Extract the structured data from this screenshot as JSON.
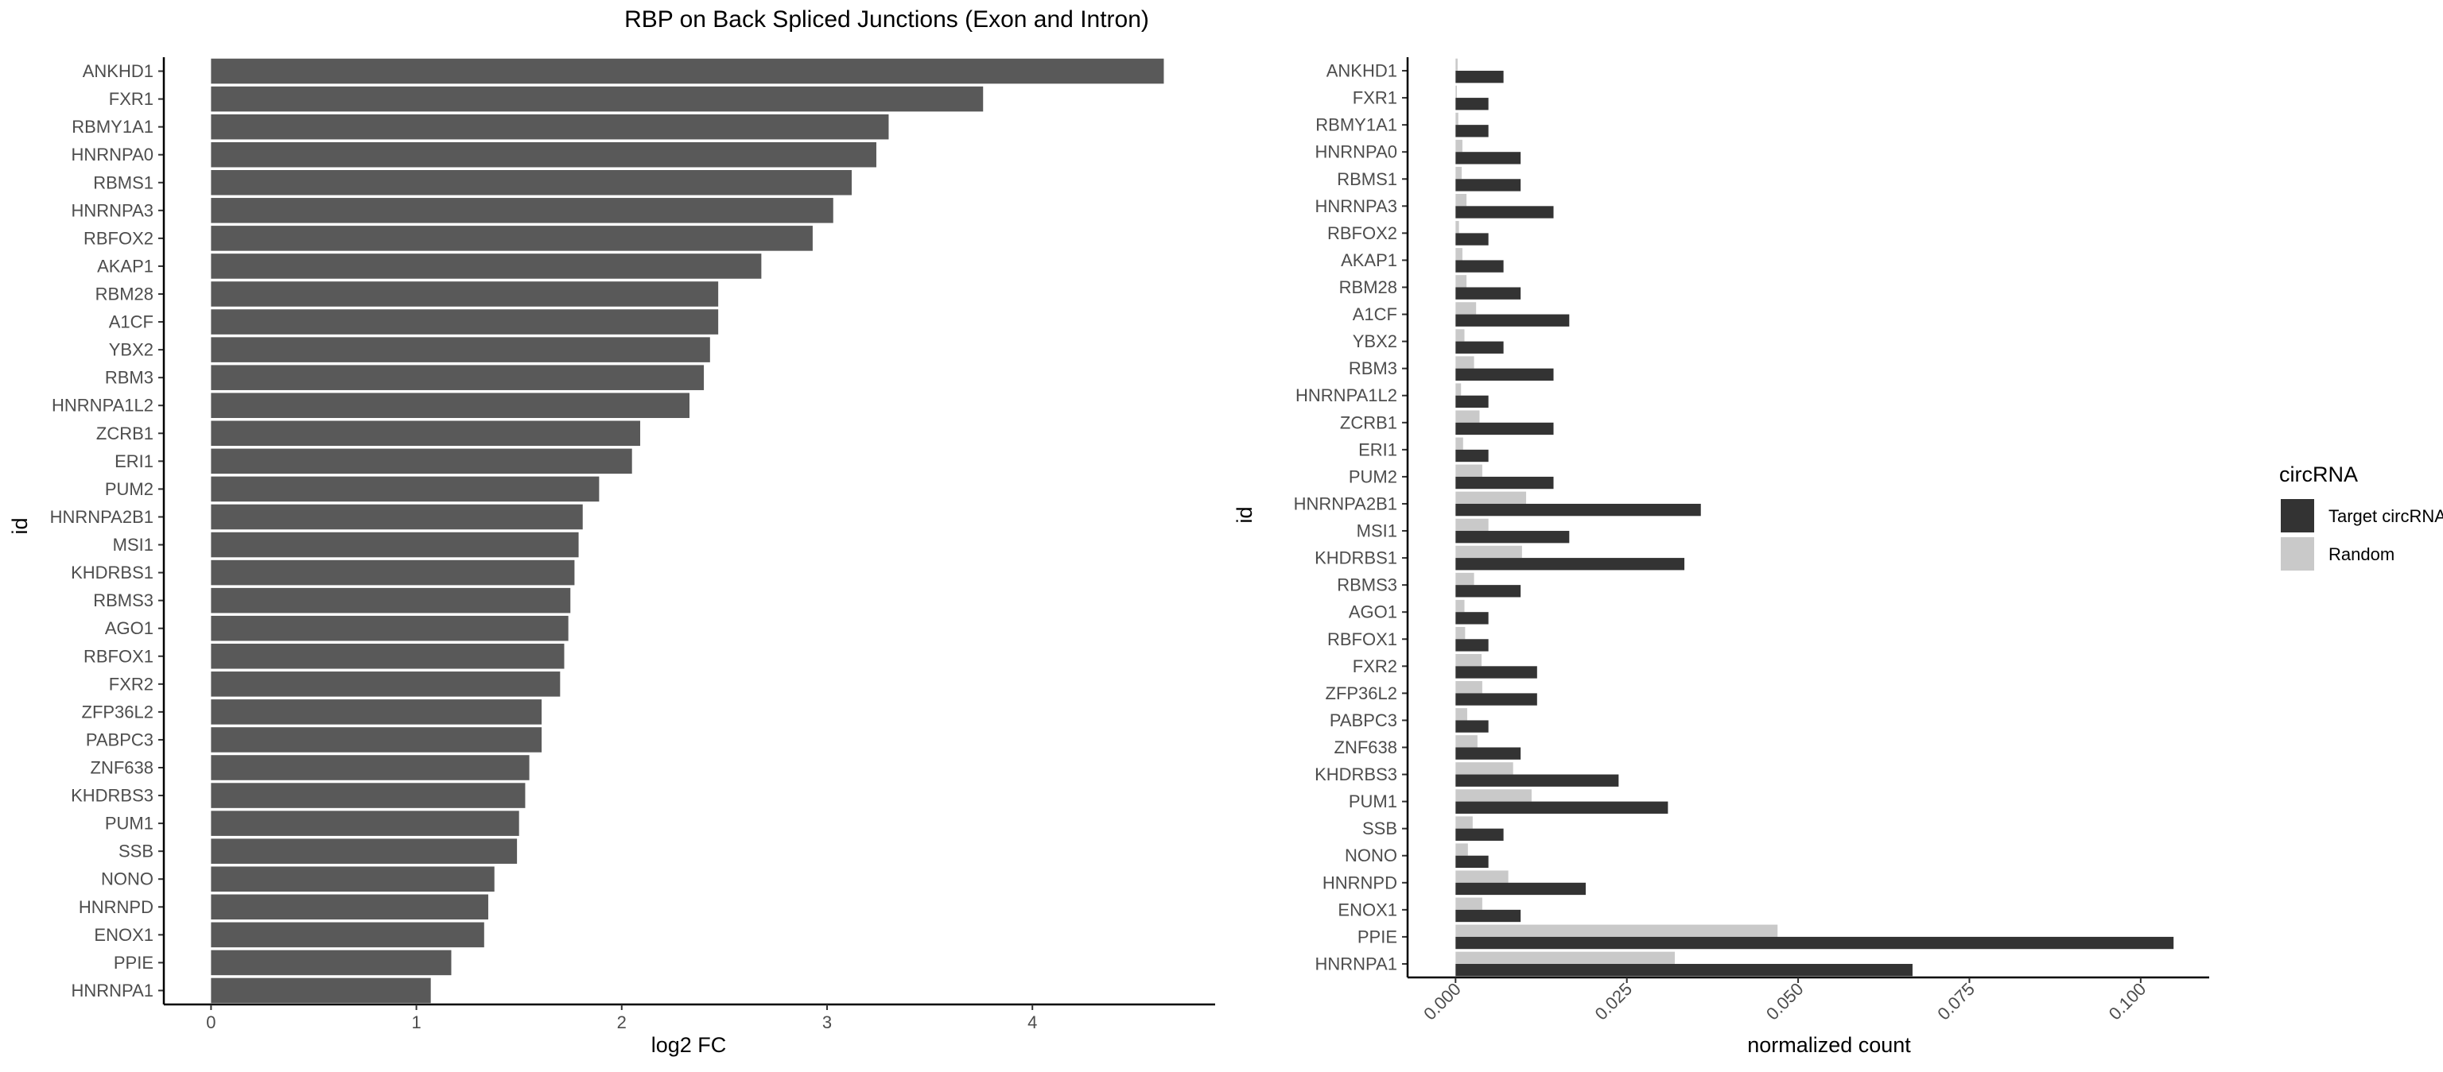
{
  "title": "RBP on Back Spliced Junctions (Exon and Intron)",
  "chart_data": [
    {
      "type": "bar",
      "orientation": "horizontal",
      "xlabel": "log2 FC",
      "ylabel": "id",
      "xlim": [
        -0.23,
        4.89
      ],
      "xticks": [
        0,
        1,
        2,
        3,
        4
      ],
      "bar_color": "#595959",
      "categories": [
        "ANKHD1",
        "FXR1",
        "RBMY1A1",
        "HNRNPA0",
        "RBMS1",
        "HNRNPA3",
        "RBFOX2",
        "AKAP1",
        "RBM28",
        "A1CF",
        "YBX2",
        "RBM3",
        "HNRNPA1L2",
        "ZCRB1",
        "ERI1",
        "PUM2",
        "HNRNPA2B1",
        "MSI1",
        "KHDRBS1",
        "RBMS3",
        "AGO1",
        "RBFOX1",
        "FXR2",
        "ZFP36L2",
        "PABPC3",
        "ZNF638",
        "KHDRBS3",
        "PUM1",
        "SSB",
        "NONO",
        "HNRNPD",
        "ENOX1",
        "PPIE",
        "HNRNPA1"
      ],
      "values": [
        4.64,
        3.76,
        3.3,
        3.24,
        3.12,
        3.03,
        2.93,
        2.68,
        2.47,
        2.47,
        2.43,
        2.4,
        2.33,
        2.09,
        2.05,
        1.89,
        1.81,
        1.79,
        1.77,
        1.75,
        1.74,
        1.72,
        1.7,
        1.61,
        1.61,
        1.55,
        1.53,
        1.5,
        1.49,
        1.38,
        1.35,
        1.33,
        1.17,
        1.07
      ]
    },
    {
      "type": "bar",
      "orientation": "horizontal",
      "grouped": true,
      "xlabel": "normalized count",
      "ylabel": "id",
      "xlim": [
        -0.007,
        0.11
      ],
      "xticks": [
        0,
        0.025,
        0.05,
        0.075,
        0.1
      ],
      "xtick_labels": [
        "0.000",
        "0.025",
        "0.050",
        "0.075",
        "0.100"
      ],
      "legend_title": "circRNA",
      "legend_position": "right",
      "categories": [
        "ANKHD1",
        "FXR1",
        "RBMY1A1",
        "HNRNPA0",
        "RBMS1",
        "HNRNPA3",
        "RBFOX2",
        "AKAP1",
        "RBM28",
        "A1CF",
        "YBX2",
        "RBM3",
        "HNRNPA1L2",
        "ZCRB1",
        "ERI1",
        "PUM2",
        "HNRNPA2B1",
        "MSI1",
        "KHDRBS1",
        "RBMS3",
        "AGO1",
        "RBFOX1",
        "FXR2",
        "ZFP36L2",
        "PABPC3",
        "ZNF638",
        "KHDRBS3",
        "PUM1",
        "SSB",
        "NONO",
        "HNRNPD",
        "ENOX1",
        "PPIE",
        "HNRNPA1"
      ],
      "series": [
        {
          "name": "Target circRNAs",
          "color": "#333333",
          "values": [
            0.007,
            0.0048,
            0.0048,
            0.0095,
            0.0095,
            0.0143,
            0.0048,
            0.007,
            0.0095,
            0.0166,
            0.007,
            0.0143,
            0.0048,
            0.0143,
            0.0048,
            0.0143,
            0.0358,
            0.0166,
            0.0334,
            0.0095,
            0.0048,
            0.0048,
            0.0119,
            0.0119,
            0.0048,
            0.0095,
            0.0238,
            0.031,
            0.007,
            0.0048,
            0.019,
            0.0095,
            0.1048,
            0.0667
          ]
        },
        {
          "name": "Random",
          "color": "#c9c9c9",
          "values": [
            0.0003,
            0.0002,
            0.0004,
            0.001,
            0.0009,
            0.0016,
            0.0005,
            0.001,
            0.0016,
            0.003,
            0.0013,
            0.0027,
            0.0008,
            0.0035,
            0.0011,
            0.0039,
            0.0103,
            0.0048,
            0.0097,
            0.0027,
            0.0013,
            0.0014,
            0.0038,
            0.0039,
            0.0017,
            0.0032,
            0.0084,
            0.0111,
            0.0025,
            0.0018,
            0.0077,
            0.0039,
            0.047,
            0.032
          ]
        }
      ]
    }
  ]
}
